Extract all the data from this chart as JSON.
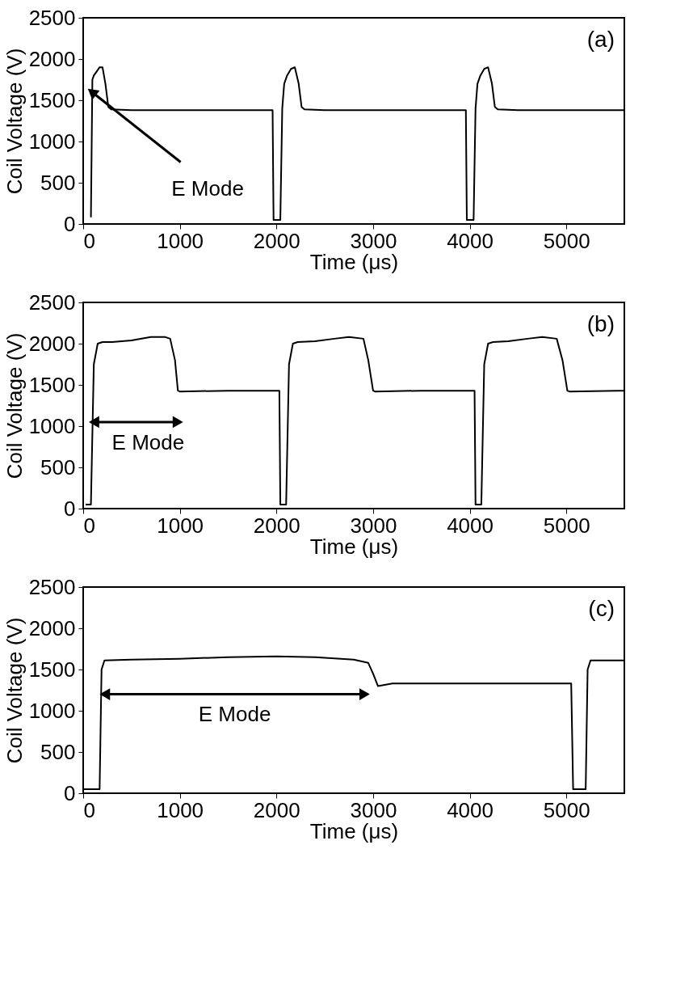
{
  "chart_data": [
    {
      "type": "line",
      "xlabel": "Time (μs)",
      "ylabel": "Coil Voltage (V)",
      "xlim": [
        0,
        5600
      ],
      "ylim": [
        0,
        2500
      ],
      "xticks": [
        0,
        1000,
        2000,
        3000,
        4000,
        5000
      ],
      "yticks": [
        0,
        500,
        1000,
        1500,
        2000,
        2500
      ],
      "grid": false,
      "marker": "none",
      "line_style": "solid",
      "annotations": [
        "(a)",
        {
          "text": "E Mode",
          "x": 90,
          "y": 1600
        }
      ],
      "series": [
        {
          "color": "#000000",
          "x": [
            80,
            95,
            110,
            140,
            170,
            200,
            230,
            260,
            290,
            500,
            1000,
            1500,
            1960,
            1970,
            2040,
            2060,
            2080,
            2110,
            2150,
            2190,
            2230,
            2260,
            2290,
            2500,
            3000,
            3500,
            3960,
            3970,
            4040,
            4060,
            4080,
            4110,
            4150,
            4190,
            4230,
            4260,
            4290,
            4500,
            5000,
            5600
          ],
          "values": [
            80,
            1750,
            1800,
            1850,
            1900,
            1900,
            1700,
            1420,
            1390,
            1380,
            1380,
            1380,
            1380,
            50,
            50,
            1400,
            1700,
            1800,
            1880,
            1900,
            1700,
            1420,
            1390,
            1380,
            1380,
            1380,
            1380,
            50,
            50,
            1400,
            1700,
            1800,
            1880,
            1900,
            1700,
            1420,
            1390,
            1380,
            1380,
            1380
          ]
        }
      ]
    },
    {
      "type": "line",
      "xlabel": "Time (μs)",
      "ylabel": "Coil Voltage (V)",
      "xlim": [
        0,
        5600
      ],
      "ylim": [
        0,
        2500
      ],
      "xticks": [
        0,
        1000,
        2000,
        3000,
        4000,
        5000
      ],
      "yticks": [
        0,
        500,
        1000,
        1500,
        2000,
        2500
      ],
      "grid": false,
      "marker": "none",
      "line_style": "solid",
      "annotations": [
        "(b)",
        "E Mode"
      ],
      "series": [
        {
          "color": "#000000",
          "x": [
            25,
            80,
            110,
            150,
            200,
            300,
            500,
            700,
            850,
            900,
            950,
            980,
            1000,
            1500,
            2030,
            2040,
            2100,
            2130,
            2170,
            2220,
            2400,
            2600,
            2750,
            2900,
            2950,
            3000,
            3020,
            3500,
            4050,
            4060,
            4120,
            4150,
            4190,
            4240,
            4400,
            4600,
            4750,
            4900,
            4960,
            5010,
            5030,
            5600
          ],
          "values": [
            50,
            50,
            1750,
            2000,
            2020,
            2020,
            2040,
            2080,
            2080,
            2060,
            1800,
            1430,
            1420,
            1430,
            1430,
            50,
            50,
            1750,
            2000,
            2020,
            2030,
            2060,
            2080,
            2060,
            1800,
            1430,
            1420,
            1430,
            1430,
            50,
            50,
            1750,
            2000,
            2020,
            2030,
            2060,
            2080,
            2060,
            1800,
            1430,
            1420,
            1430
          ]
        }
      ]
    },
    {
      "type": "line",
      "xlabel": "Time (μs)",
      "ylabel": "Coil Voltage (V)",
      "xlim": [
        0,
        5600
      ],
      "ylim": [
        0,
        2500
      ],
      "xticks": [
        0,
        1000,
        2000,
        3000,
        4000,
        5000
      ],
      "yticks": [
        0,
        500,
        1000,
        1500,
        2000,
        2500
      ],
      "grid": false,
      "marker": "none",
      "line_style": "solid",
      "annotations": [
        "(c)",
        "E Mode"
      ],
      "series": [
        {
          "color": "#000000",
          "x": [
            0,
            170,
            190,
            220,
            500,
            1000,
            1500,
            2000,
            2400,
            2800,
            2950,
            3000,
            3050,
            3200,
            4000,
            5050,
            5070,
            5200,
            5220,
            5250,
            5600
          ],
          "values": [
            50,
            50,
            1500,
            1610,
            1620,
            1630,
            1650,
            1660,
            1650,
            1620,
            1580,
            1450,
            1300,
            1330,
            1330,
            1330,
            50,
            50,
            1500,
            1610,
            1610
          ]
        }
      ]
    }
  ]
}
